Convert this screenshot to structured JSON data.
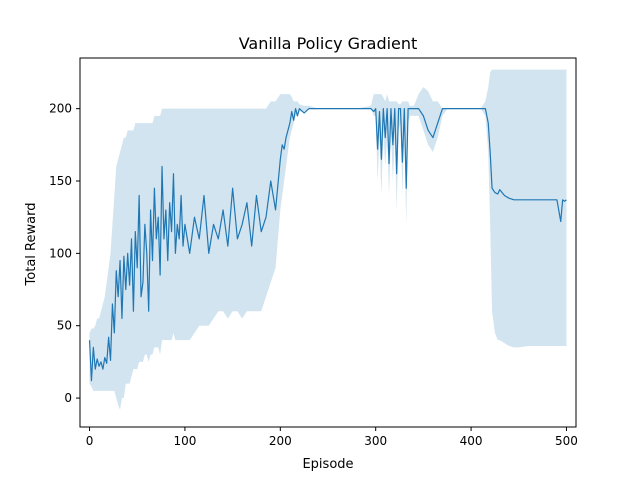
{
  "chart_data": {
    "type": "line",
    "title": "Vanilla Policy Gradient",
    "xlabel": "Episode",
    "ylabel": "Total Reward",
    "xlim": [
      -10,
      510
    ],
    "ylim": [
      -20,
      235
    ],
    "xticks": [
      0,
      100,
      200,
      300,
      400,
      500
    ],
    "yticks": [
      0,
      50,
      100,
      150,
      200
    ],
    "grid": false,
    "legend": "none",
    "colors": {
      "line": "#1f77b4",
      "band": "#1f77b4",
      "band_opacity": 0.2
    },
    "series": [
      {
        "x": [
          0,
          2,
          4,
          6,
          8,
          10,
          12,
          14,
          16,
          18,
          20,
          22,
          24,
          26,
          28,
          30,
          32,
          34,
          36,
          38,
          40,
          42,
          44,
          46,
          48,
          50,
          52,
          54,
          56,
          58,
          60,
          62,
          64,
          66,
          68,
          70,
          72,
          74,
          76,
          78,
          80,
          82,
          84,
          86,
          88,
          90,
          92,
          94,
          96,
          98,
          100,
          105,
          110,
          115,
          120,
          125,
          130,
          135,
          140,
          145,
          150,
          155,
          160,
          165,
          170,
          175,
          180,
          185,
          190,
          195,
          200,
          202,
          204,
          206,
          208,
          210,
          212,
          214,
          216,
          218,
          220,
          225,
          230,
          240,
          260,
          280,
          295,
          298,
          300,
          302,
          304,
          306,
          308,
          310,
          312,
          314,
          316,
          318,
          320,
          322,
          324,
          326,
          328,
          330,
          332,
          334,
          336,
          340,
          345,
          350,
          355,
          360,
          365,
          370,
          375,
          380,
          390,
          400,
          410,
          415,
          418,
          420,
          422,
          425,
          428,
          430,
          435,
          440,
          445,
          450,
          460,
          470,
          480,
          490,
          494,
          496,
          498,
          500
        ],
        "mean": [
          40,
          12,
          35,
          20,
          27,
          22,
          25,
          20,
          28,
          24,
          42,
          26,
          65,
          45,
          88,
          70,
          95,
          55,
          98,
          75,
          100,
          78,
          110,
          60,
          115,
          90,
          140,
          70,
          80,
          120,
          100,
          60,
          130,
          95,
          145,
          110,
          125,
          85,
          160,
          110,
          130,
          95,
          135,
          115,
          155,
          100,
          120,
          110,
          140,
          105,
          120,
          100,
          125,
          110,
          140,
          100,
          120,
          110,
          130,
          105,
          145,
          110,
          120,
          135,
          105,
          140,
          115,
          125,
          150,
          130,
          165,
          175,
          172,
          180,
          185,
          190,
          198,
          192,
          200,
          195,
          200,
          197,
          200,
          200,
          200,
          200,
          200,
          198,
          200,
          172,
          198,
          165,
          200,
          180,
          200,
          162,
          200,
          175,
          200,
          155,
          200,
          200,
          163,
          200,
          145,
          200,
          200,
          200,
          200,
          195,
          185,
          180,
          190,
          200,
          200,
          200,
          200,
          200,
          200,
          200,
          190,
          170,
          145,
          142,
          141,
          144,
          140,
          138,
          137,
          137,
          137,
          137,
          137,
          137,
          122,
          137,
          136,
          137
        ],
        "lower": [
          10,
          8,
          5,
          5,
          5,
          5,
          5,
          5,
          5,
          5,
          5,
          5,
          5,
          5,
          0,
          -5,
          -8,
          0,
          0,
          10,
          10,
          10,
          15,
          20,
          20,
          20,
          25,
          25,
          25,
          30,
          30,
          25,
          30,
          30,
          35,
          35,
          35,
          30,
          40,
          40,
          40,
          40,
          40,
          40,
          45,
          40,
          40,
          40,
          40,
          40,
          40,
          40,
          45,
          50,
          50,
          50,
          55,
          60,
          60,
          55,
          60,
          60,
          55,
          60,
          60,
          60,
          60,
          70,
          80,
          90,
          130,
          140,
          150,
          160,
          170,
          180,
          185,
          190,
          195,
          195,
          198,
          198,
          200,
          200,
          200,
          200,
          200,
          195,
          195,
          150,
          180,
          140,
          185,
          160,
          180,
          140,
          185,
          150,
          180,
          130,
          185,
          190,
          140,
          185,
          120,
          190,
          195,
          195,
          195,
          185,
          175,
          170,
          180,
          195,
          200,
          200,
          200,
          200,
          200,
          195,
          170,
          120,
          60,
          45,
          40,
          40,
          38,
          36,
          35,
          35,
          36,
          36,
          36,
          36,
          36,
          36,
          36,
          36
        ],
        "upper": [
          45,
          48,
          48,
          50,
          55,
          55,
          60,
          65,
          70,
          80,
          90,
          100,
          120,
          140,
          160,
          165,
          170,
          175,
          180,
          180,
          185,
          185,
          185,
          185,
          190,
          190,
          190,
          190,
          190,
          190,
          190,
          190,
          190,
          190,
          195,
          195,
          195,
          195,
          200,
          200,
          200,
          200,
          200,
          200,
          200,
          200,
          200,
          200,
          200,
          200,
          200,
          200,
          200,
          200,
          200,
          200,
          200,
          200,
          200,
          200,
          200,
          200,
          200,
          200,
          200,
          200,
          200,
          200,
          205,
          205,
          210,
          210,
          210,
          210,
          210,
          210,
          208,
          205,
          205,
          205,
          203,
          202,
          202,
          200,
          200,
          200,
          202,
          210,
          210,
          210,
          210,
          210,
          208,
          205,
          210,
          205,
          205,
          205,
          205,
          205,
          203,
          203,
          205,
          205,
          205,
          205,
          202,
          202,
          210,
          215,
          212,
          205,
          205,
          200,
          200,
          200,
          200,
          200,
          200,
          205,
          215,
          225,
          227,
          227,
          227,
          227,
          227,
          227,
          227,
          227,
          227,
          227,
          227,
          227,
          227,
          227,
          227,
          227
        ]
      }
    ]
  }
}
